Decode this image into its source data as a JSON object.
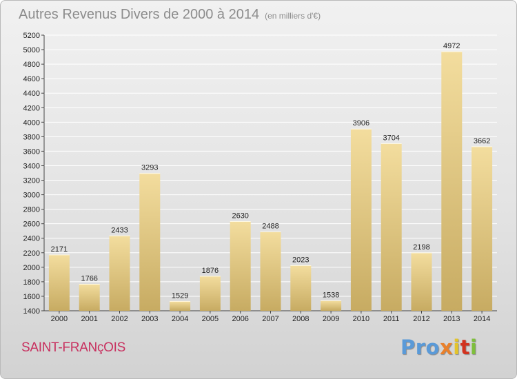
{
  "title": "Autres Revenus Divers de 2000 à 2014",
  "unit_note": "(en milliers d'€)",
  "commune": "SAINT-FRANçOIS",
  "logo": {
    "text": "Proxiti",
    "parts": [
      "Pro",
      "x",
      "i",
      "t",
      "i"
    ]
  },
  "colors": {
    "bar_light": "#f3dd9e",
    "bar_dark": "#c7ab62",
    "grid": "#ffffff",
    "title": "#8c8c8c",
    "commune": "#c8305f"
  },
  "chart_data": {
    "type": "bar",
    "categories": [
      "2000",
      "2001",
      "2002",
      "2003",
      "2004",
      "2005",
      "2006",
      "2007",
      "2008",
      "2009",
      "2010",
      "2011",
      "2012",
      "2013",
      "2014"
    ],
    "values": [
      2171,
      1766,
      2433,
      3293,
      1529,
      1876,
      2630,
      2488,
      2023,
      1538,
      3906,
      3704,
      2198,
      4972,
      3662
    ],
    "ylim": [
      1400,
      5200
    ],
    "yticks": [
      1400,
      1600,
      1800,
      2000,
      2200,
      2400,
      2600,
      2800,
      3000,
      3200,
      3400,
      3600,
      3800,
      4000,
      4200,
      4400,
      4600,
      4800,
      5000,
      5200
    ],
    "grid": true,
    "title": "Autres Revenus Divers de 2000 à 2014",
    "xlabel": "",
    "ylabel": ""
  }
}
